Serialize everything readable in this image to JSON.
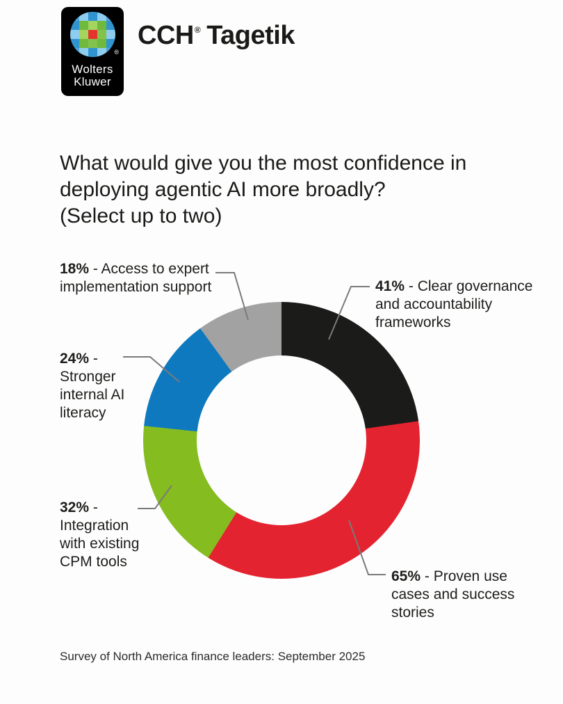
{
  "header": {
    "logo": {
      "brand_line1": "Wolters",
      "brand_line2": "Kluwer",
      "registered_mark": "®",
      "mosaic": [
        [
          "#4da2d8",
          "#8fcdef",
          "#3094d0",
          "#8fcdef",
          "#4da2d8"
        ],
        [
          "#3094d0",
          "#6fb93f",
          "#a3d55f",
          "#6fb93f",
          "#3094d0"
        ],
        [
          "#8fcdef",
          "#a3d55f",
          "#e5332e",
          "#84c24e",
          "#8fcdef"
        ],
        [
          "#3094d0",
          "#6fb93f",
          "#84c24e",
          "#6fb93f",
          "#3094d0"
        ],
        [
          "#4da2d8",
          "#8fcdef",
          "#3094d0",
          "#8fcdef",
          "#4da2d8"
        ]
      ]
    },
    "product": {
      "name_prefix": "CCH",
      "registered_mark": "®",
      "name_suffix": " Tagetik"
    }
  },
  "title": {
    "lines": [
      "What would give you the most confidence in",
      "deploying agentic AI more broadly?",
      "(Select up to two)"
    ]
  },
  "chart_data": {
    "type": "pie",
    "donut": true,
    "title": "What would give you the most confidence in deploying agentic AI more broadly? (Select up to two)",
    "unit": "%",
    "start_angle_deg": 0,
    "clockwise": true,
    "slices": [
      {
        "label": "Clear governance and accountability frameworks",
        "value": 41,
        "color": "#1b1b19"
      },
      {
        "label": "Proven use cases and success stories",
        "value": 65,
        "color": "#e32330"
      },
      {
        "label": "Integration with existing CPM tools",
        "value": 32,
        "color": "#85bc20"
      },
      {
        "label": "Stronger internal AI literacy",
        "value": 24,
        "color": "#0f79bf"
      },
      {
        "label": "Access to expert implementation support",
        "value": 18,
        "color": "#a2a2a2"
      }
    ]
  },
  "callouts": [
    {
      "pct": "18%",
      "rest": " - Access to expert",
      "lines": [
        "implementation support"
      ]
    },
    {
      "pct": "41%",
      "rest": " - Clear governance",
      "lines": [
        "and accountability",
        "frameworks"
      ]
    },
    {
      "pct": "24%",
      "rest": " -",
      "lines": [
        "Stronger",
        "internal AI",
        "literacy"
      ]
    },
    {
      "pct": "32%",
      "rest": " -",
      "lines": [
        "Integration",
        "with existing",
        "CPM tools"
      ]
    },
    {
      "pct": "65%",
      "rest": " - Proven use",
      "lines": [
        "cases and success",
        "stories"
      ]
    }
  ],
  "footer": {
    "text": "Survey of North America finance leaders: September 2025"
  },
  "ui_colors": {
    "leader_line": "#7a7a7a",
    "text": "#1d1d1b",
    "background": "#fdfdfd"
  }
}
